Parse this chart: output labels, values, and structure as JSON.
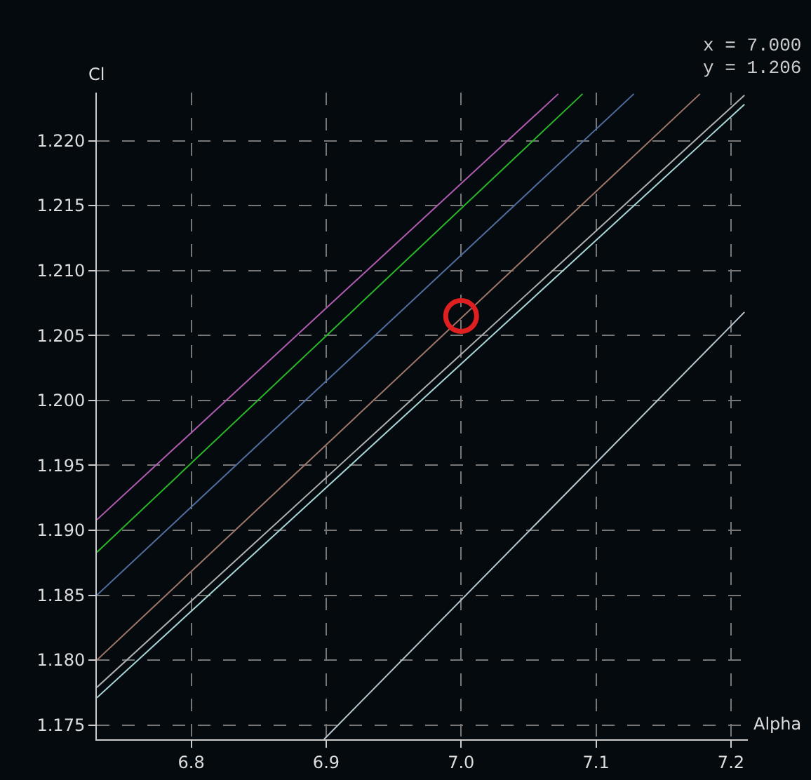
{
  "chart_data": {
    "type": "line",
    "xlabel": "Alpha",
    "ylabel": "Cl",
    "annotations": [
      "x = 7.000",
      "y = 1.206"
    ],
    "xlim": [
      6.73,
      7.2125
    ],
    "ylim": [
      1.1739,
      1.2237
    ],
    "xticks": [
      6.8,
      6.9,
      {
        "value": 7.0,
        "label": "7.0"
      },
      7.1,
      7.2
    ],
    "yticks": [
      1.175,
      {
        "value": 1.18,
        "label": "1.180"
      },
      1.185,
      {
        "value": 1.19,
        "label": "1.190"
      },
      1.195,
      {
        "value": 1.2,
        "label": "1.200"
      },
      1.205,
      {
        "value": 1.21,
        "label": "1.210"
      },
      1.215,
      {
        "value": 1.22,
        "label": "1.220"
      }
    ],
    "grid": true,
    "line_style": "solid",
    "series": [
      {
        "color": "#b05cb0",
        "x": [
          6.73,
          7.072
        ],
        "values": [
          1.1908,
          1.2236
        ]
      },
      {
        "color": "#28b828",
        "x": [
          6.73,
          7.09
        ],
        "values": [
          1.1883,
          1.2236
        ]
      },
      {
        "color": "#4f6f9f",
        "x": [
          6.73,
          7.128
        ],
        "values": [
          1.185,
          1.2236
        ]
      },
      {
        "color": "#a07868",
        "x": [
          6.73,
          7.177
        ],
        "values": [
          1.18,
          1.2236
        ]
      },
      {
        "color": "#b0b0b0",
        "x": [
          6.73,
          7.21
        ],
        "values": [
          1.1779,
          1.2235
        ]
      },
      {
        "color": "#a8d8d8",
        "x": [
          6.73,
          7.21
        ],
        "values": [
          1.1771,
          1.2228
        ]
      },
      {
        "color": "#b8c8d0",
        "x": [
          6.8984,
          7.21
        ],
        "values": [
          1.1739,
          1.2068
        ]
      },
      {
        "type": "scatter",
        "marker": "circle",
        "color": "#e02020",
        "x": [
          7.0
        ],
        "values": [
          1.2065
        ]
      }
    ]
  }
}
